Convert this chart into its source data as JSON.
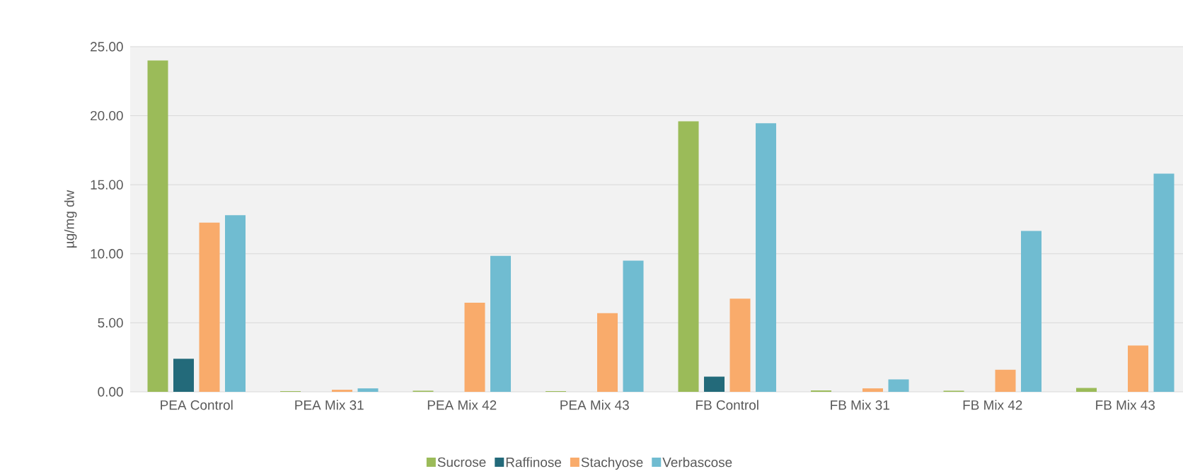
{
  "chart_data": {
    "type": "bar",
    "ylabel": "µg/mg dw",
    "categories": [
      "PEA Control",
      "PEA Mix 31",
      "PEA Mix 42",
      "PEA Mix 43",
      "FB Control",
      "FB Mix 31",
      "FB Mix 42",
      "FB Mix 43"
    ],
    "series": [
      {
        "name": "Sucrose",
        "color": "#9bbb59",
        "values": [
          24.0,
          0.05,
          0.08,
          0.05,
          19.6,
          0.1,
          0.08,
          0.28
        ]
      },
      {
        "name": "Raffinose",
        "color": "#236a7a",
        "values": [
          2.4,
          0,
          0,
          0,
          1.1,
          0,
          0,
          0
        ]
      },
      {
        "name": "Stachyose",
        "color": "#f9ab6b",
        "values": [
          12.25,
          0.15,
          6.45,
          5.7,
          6.75,
          0.25,
          1.6,
          3.35
        ]
      },
      {
        "name": "Verbascose",
        "color": "#70bcd1",
        "values": [
          12.8,
          0.25,
          9.85,
          9.5,
          19.45,
          0.9,
          11.65,
          15.8
        ]
      }
    ],
    "ylim": [
      0,
      25
    ],
    "yticks": [
      {
        "value": 0,
        "label": "0.00"
      },
      {
        "value": 5,
        "label": "5.00"
      },
      {
        "value": 10,
        "label": "10.00"
      },
      {
        "value": 15,
        "label": "15.00"
      },
      {
        "value": 20,
        "label": "20.00"
      },
      {
        "value": 25,
        "label": "25.00"
      }
    ],
    "grid": "y",
    "legend": "bottom"
  }
}
